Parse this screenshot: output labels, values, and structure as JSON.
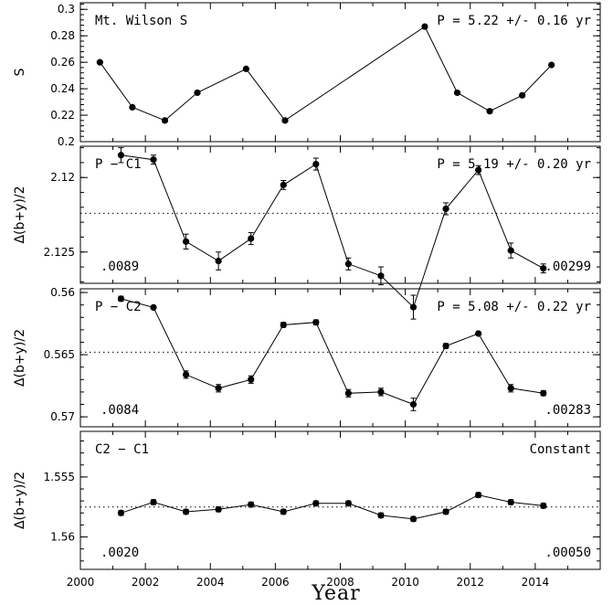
{
  "figure": {
    "xlabel": "Year"
  },
  "chart_data": [
    {
      "type": "line",
      "title": "Mt. Wilson S",
      "period_text": "P = 5.22 +/- 0.16 yr",
      "ylabel": "S",
      "ylim": [
        0.2,
        0.305
      ],
      "yticks": [
        0.2,
        0.22,
        0.24,
        0.26,
        0.28,
        0.3
      ],
      "ytick_labels": [
        "0.2",
        "0.22",
        "0.24",
        "0.26",
        "0.28",
        "0.3"
      ],
      "inverted": false,
      "ref_line": null,
      "x": [
        2000.6,
        2001.6,
        2002.6,
        2003.6,
        2005.1,
        2006.3,
        2010.6,
        2011.6,
        2012.6,
        2013.6,
        2014.5
      ],
      "y": [
        0.26,
        0.226,
        0.216,
        0.237,
        0.255,
        0.216,
        0.287,
        0.237,
        0.223,
        0.235,
        0.258
      ],
      "yerr": null,
      "left_note": "",
      "right_note": ""
    },
    {
      "type": "line",
      "title": "P − C1",
      "period_text": "P = 5.19 +/- 0.20 yr",
      "ylabel": "Δ(b+y)/2",
      "ylim": [
        2.1271,
        2.1179
      ],
      "yticks": [
        2.12,
        2.125
      ],
      "ytick_labels": [
        "2.12",
        "2.125"
      ],
      "inverted": true,
      "ref_line": 2.1224,
      "x": [
        2001.25,
        2002.25,
        2003.25,
        2004.25,
        2005.25,
        2006.25,
        2007.25,
        2008.25,
        2009.25,
        2010.25,
        2011.25,
        2012.25,
        2013.25,
        2014.25
      ],
      "y": [
        2.1185,
        2.1188,
        2.1243,
        2.1256,
        2.1241,
        2.1205,
        2.1191,
        2.1258,
        2.1266,
        2.1287,
        2.1221,
        2.1195,
        2.1249,
        2.1261
      ],
      "yerr": [
        0.0005,
        0.0003,
        0.0005,
        0.0006,
        0.0004,
        0.0003,
        0.0004,
        0.0004,
        0.0006,
        0.0008,
        0.0004,
        0.0003,
        0.0005,
        0.0003
      ],
      "left_note": ".0089",
      "right_note": ".00299"
    },
    {
      "type": "line",
      "title": "P − C2",
      "period_text": "P = 5.08 +/- 0.22 yr",
      "ylabel": "Δ(b+y)/2",
      "ylim": [
        0.5708,
        0.5597
      ],
      "yticks": [
        0.56,
        0.565,
        0.57
      ],
      "ytick_labels": [
        "0.56",
        "0.565",
        "0.57"
      ],
      "inverted": true,
      "ref_line": 0.5648,
      "x": [
        2001.25,
        2002.25,
        2003.25,
        2004.25,
        2005.25,
        2006.25,
        2007.25,
        2008.25,
        2009.25,
        2010.25,
        2011.25,
        2012.25,
        2013.25,
        2014.25
      ],
      "y": [
        0.5605,
        0.5612,
        0.5666,
        0.5677,
        0.567,
        0.5626,
        0.5624,
        0.5681,
        0.568,
        0.569,
        0.5643,
        0.5633,
        0.5677,
        0.5681
      ],
      "yerr": [
        0.0002,
        0.0001,
        0.0003,
        0.0003,
        0.0003,
        0.0002,
        0.0002,
        0.0003,
        0.0003,
        0.0005,
        0.0002,
        0.0001,
        0.0003,
        0.0002
      ],
      "left_note": ".0084",
      "right_note": ".00283"
    },
    {
      "type": "line",
      "title": "C2 − C1",
      "period_text": "Constant",
      "ylabel": "Δ(b+y)/2",
      "ylim": [
        1.5627,
        1.5512
      ],
      "yticks": [
        1.555,
        1.56
      ],
      "ytick_labels": [
        "1.555",
        "1.56"
      ],
      "inverted": true,
      "ref_line": 1.5575,
      "x": [
        2001.25,
        2002.25,
        2003.25,
        2004.25,
        2005.25,
        2006.25,
        2007.25,
        2008.25,
        2009.25,
        2010.25,
        2011.25,
        2012.25,
        2013.25,
        2014.25
      ],
      "y": [
        1.558,
        1.5571,
        1.5579,
        1.5577,
        1.5573,
        1.5579,
        1.5572,
        1.5572,
        1.5582,
        1.5585,
        1.5579,
        1.5565,
        1.5571,
        1.5574
      ],
      "yerr": [
        0.0002,
        0.0002,
        0.0002,
        0.0002,
        0.0002,
        0.0002,
        0.0002,
        0.0002,
        0.0002,
        0.0002,
        0.0002,
        0.0002,
        0.0002,
        0.0002
      ],
      "left_note": ".0020",
      "right_note": ".00050"
    }
  ],
  "xaxis": {
    "xlim": [
      2000,
      2016
    ],
    "ticks": [
      2000,
      2002,
      2004,
      2006,
      2008,
      2010,
      2012,
      2014
    ],
    "tick_labels": [
      "2000",
      "2002",
      "2004",
      "2006",
      "2008",
      "2010",
      "2012",
      "2014"
    ]
  }
}
